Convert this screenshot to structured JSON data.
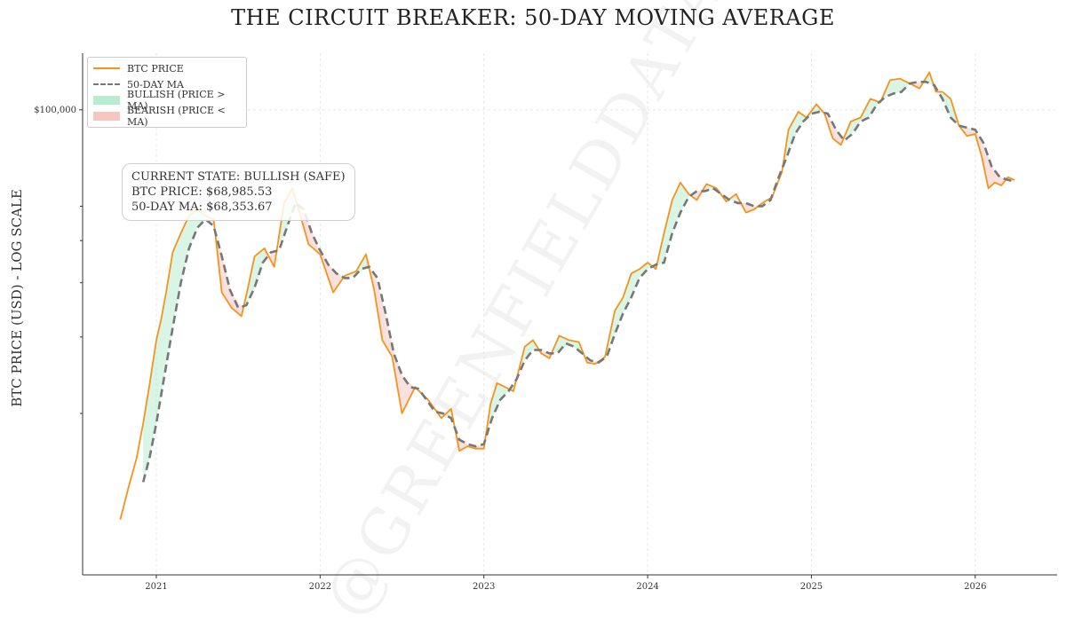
{
  "chart_data": {
    "type": "line",
    "title": "THE CIRCUIT BREAKER: 50-DAY MOVING AVERAGE",
    "ylabel": "BTC PRICE (USD) - LOG SCALE",
    "xlabel": "",
    "yscale": "log",
    "ylim": [
      8500,
      135000
    ],
    "xlim": [
      2020.55,
      2026.5
    ],
    "xticks": [
      2021,
      2022,
      2023,
      2024,
      2025,
      2026
    ],
    "xtick_labels": [
      "2021",
      "2022",
      "2023",
      "2024",
      "2025",
      "2026"
    ],
    "yticks": [
      100000
    ],
    "ytick_labels": [
      "$100,000"
    ],
    "grid": true,
    "legend_position": "top-left",
    "legend": [
      "BTC PRICE",
      "50-DAY MA",
      "BULLISH (PRICE > MA)",
      "BEARISH (PRICE < MA)"
    ],
    "colors": {
      "price": "#f7931a",
      "ma": "#777777",
      "bullish": "#b8ecd0",
      "bearish": "#f6c6c2"
    },
    "annotation": {
      "state": "CURRENT STATE: BULLISH (SAFE)",
      "price": "BTC PRICE: $68,985.53",
      "ma": "50-DAY MA: $68,353.67"
    },
    "watermark": "@GREENFIELDDATA",
    "series": [
      {
        "name": "BTC PRICE",
        "x": [
          2020.78,
          2020.83,
          2020.88,
          2020.92,
          2020.96,
          2021.0,
          2021.03,
          2021.06,
          2021.1,
          2021.15,
          2021.2,
          2021.25,
          2021.3,
          2021.35,
          2021.4,
          2021.46,
          2021.52,
          2021.56,
          2021.6,
          2021.66,
          2021.72,
          2021.78,
          2021.83,
          2021.88,
          2021.93,
          2022.0,
          2022.08,
          2022.15,
          2022.22,
          2022.28,
          2022.33,
          2022.38,
          2022.44,
          2022.5,
          2022.58,
          2022.66,
          2022.74,
          2022.8,
          2022.85,
          2022.9,
          2022.95,
          2023.0,
          2023.04,
          2023.08,
          2023.13,
          2023.18,
          2023.25,
          2023.3,
          2023.35,
          2023.4,
          2023.46,
          2023.52,
          2023.58,
          2023.63,
          2023.68,
          2023.74,
          2023.8,
          2023.85,
          2023.9,
          2023.95,
          2024.0,
          2024.05,
          2024.1,
          2024.15,
          2024.2,
          2024.25,
          2024.3,
          2024.36,
          2024.42,
          2024.48,
          2024.54,
          2024.6,
          2024.65,
          2024.7,
          2024.76,
          2024.82,
          2024.86,
          2024.92,
          2024.97,
          2025.03,
          2025.08,
          2025.13,
          2025.18,
          2025.24,
          2025.3,
          2025.36,
          2025.42,
          2025.48,
          2025.54,
          2025.6,
          2025.66,
          2025.72,
          2025.76,
          2025.8,
          2025.85,
          2025.9,
          2025.95,
          2026.0,
          2026.04,
          2026.08,
          2026.12,
          2026.16,
          2026.2,
          2026.24
        ],
        "values": [
          11400,
          13500,
          15800,
          19000,
          23500,
          29500,
          33000,
          38000,
          47000,
          52000,
          57000,
          59000,
          57000,
          56000,
          38000,
          35000,
          33500,
          39000,
          46000,
          48000,
          43500,
          61000,
          66000,
          57000,
          49000,
          46500,
          38000,
          41500,
          42500,
          46500,
          38500,
          29500,
          27000,
          20000,
          23000,
          21500,
          19500,
          20500,
          16400,
          16800,
          16600,
          16600,
          21000,
          23500,
          23000,
          22500,
          28500,
          29500,
          27500,
          26800,
          30200,
          29500,
          29200,
          26200,
          26000,
          27000,
          34500,
          37000,
          42000,
          43000,
          44500,
          43000,
          52000,
          62000,
          68000,
          64000,
          62000,
          67500,
          66000,
          61500,
          64000,
          58000,
          59000,
          61000,
          63000,
          72000,
          90000,
          99000,
          96000,
          103000,
          98000,
          86000,
          83000,
          94000,
          96000,
          106000,
          104000,
          117000,
          118000,
          115000,
          112000,
          122000,
          110000,
          110000,
          106000,
          92000,
          87000,
          88000,
          78000,
          66000,
          68000,
          67000,
          70000,
          68985.53
        ]
      },
      {
        "name": "50-DAY MA",
        "x": [
          2020.92,
          2020.96,
          2021.0,
          2021.05,
          2021.1,
          2021.15,
          2021.2,
          2021.25,
          2021.3,
          2021.35,
          2021.4,
          2021.45,
          2021.5,
          2021.55,
          2021.6,
          2021.65,
          2021.7,
          2021.75,
          2021.8,
          2021.85,
          2021.9,
          2021.95,
          2022.0,
          2022.05,
          2022.1,
          2022.15,
          2022.2,
          2022.25,
          2022.3,
          2022.35,
          2022.4,
          2022.45,
          2022.5,
          2022.55,
          2022.6,
          2022.65,
          2022.7,
          2022.75,
          2022.8,
          2022.85,
          2022.9,
          2022.95,
          2023.0,
          2023.05,
          2023.1,
          2023.15,
          2023.2,
          2023.25,
          2023.3,
          2023.35,
          2023.4,
          2023.45,
          2023.5,
          2023.55,
          2023.6,
          2023.65,
          2023.7,
          2023.75,
          2023.8,
          2023.85,
          2023.9,
          2023.95,
          2024.0,
          2024.05,
          2024.1,
          2024.15,
          2024.2,
          2024.25,
          2024.3,
          2024.35,
          2024.4,
          2024.45,
          2024.5,
          2024.55,
          2024.6,
          2024.65,
          2024.7,
          2024.75,
          2024.8,
          2024.85,
          2024.9,
          2024.95,
          2025.0,
          2025.05,
          2025.1,
          2025.15,
          2025.2,
          2025.25,
          2025.3,
          2025.35,
          2025.4,
          2025.45,
          2025.5,
          2025.55,
          2025.6,
          2025.65,
          2025.7,
          2025.75,
          2025.8,
          2025.85,
          2025.9,
          2025.95,
          2026.0,
          2026.05,
          2026.1,
          2026.15,
          2026.2,
          2026.24
        ],
        "values": [
          13900,
          15900,
          19000,
          24500,
          31500,
          40000,
          48000,
          53500,
          56000,
          54000,
          46000,
          38500,
          35000,
          35500,
          39000,
          44500,
          47000,
          47500,
          54000,
          61000,
          59000,
          52000,
          47500,
          44000,
          42000,
          41000,
          41000,
          43000,
          43500,
          41000,
          34000,
          27500,
          24500,
          23000,
          22800,
          21500,
          20200,
          20000,
          19500,
          17400,
          17000,
          16800,
          17000,
          19500,
          21500,
          22500,
          24000,
          26500,
          28000,
          28000,
          27500,
          27500,
          29000,
          28500,
          27500,
          26500,
          26200,
          27000,
          30500,
          34000,
          37000,
          41000,
          43000,
          44000,
          44500,
          52000,
          58000,
          63000,
          65000,
          65000,
          66000,
          64000,
          62000,
          61000,
          61000,
          60000,
          60000,
          62000,
          70000,
          78000,
          88000,
          94000,
          98000,
          99000,
          98000,
          90000,
          85000,
          88000,
          94000,
          96000,
          103000,
          107000,
          109000,
          110000,
          115000,
          116000,
          116000,
          114000,
          106000,
          96000,
          92000,
          91000,
          90000,
          84000,
          74000,
          70000,
          69000,
          68353.67
        ]
      }
    ]
  }
}
